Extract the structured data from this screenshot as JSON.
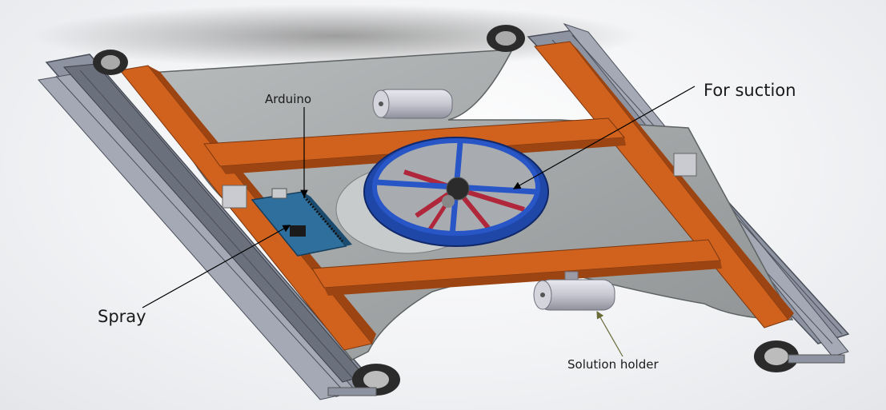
{
  "labels": {
    "arduino": "Arduino",
    "for_suction": "For suction",
    "spray": "Spray",
    "solution_holder": "Solution holder"
  },
  "colors": {
    "frame_orange": "#d0621e",
    "frame_orange_dark": "#9d4512",
    "plate_gray": "#9ea2a3",
    "fan_blue": "#2856c6",
    "fan_blade_red": "#b0263a",
    "arduino_blue": "#2e6f9e",
    "rail_gray": "#7e8490",
    "wheel_dark": "#2b2b2b",
    "leader_line": "#000000",
    "solution_arrow": "#6b6b3a"
  }
}
